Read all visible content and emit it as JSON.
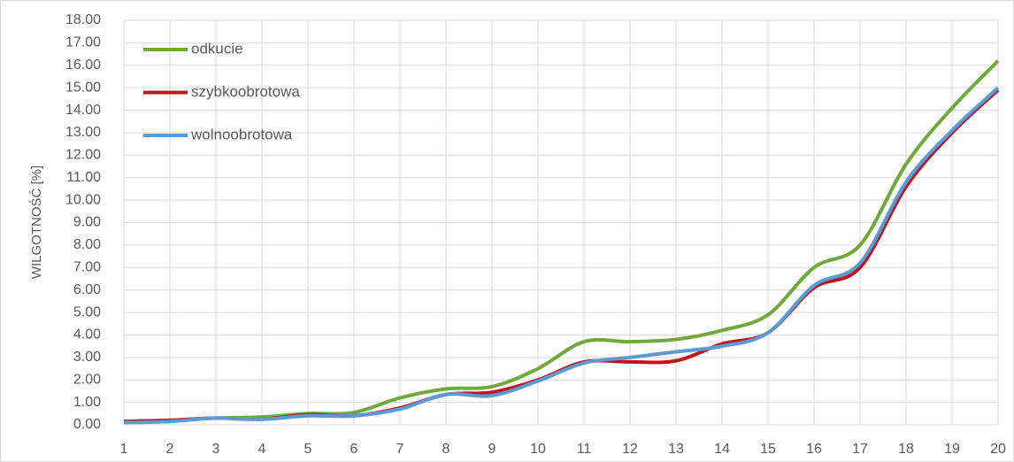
{
  "chart_data": {
    "type": "line",
    "y_label": "WILGOTNOŚĆ [%]",
    "x": [
      1,
      2,
      3,
      4,
      5,
      6,
      7,
      8,
      9,
      10,
      11,
      12,
      13,
      14,
      15,
      16,
      17,
      18,
      19,
      20
    ],
    "xlim": [
      1,
      20
    ],
    "xticks": [
      1,
      2,
      3,
      4,
      5,
      6,
      7,
      8,
      9,
      10,
      11,
      12,
      13,
      14,
      15,
      16,
      17,
      18,
      19,
      20
    ],
    "ylim": [
      0,
      18
    ],
    "yticks": [
      {
        "value": 0,
        "label": "0.00"
      },
      {
        "value": 1,
        "label": "1.00"
      },
      {
        "value": 2,
        "label": "2.00"
      },
      {
        "value": 3,
        "label": "3.00"
      },
      {
        "value": 4,
        "label": "4.00"
      },
      {
        "value": 5,
        "label": "5.00"
      },
      {
        "value": 6,
        "label": "6.00"
      },
      {
        "value": 7,
        "label": "7.00"
      },
      {
        "value": 8,
        "label": "8.00"
      },
      {
        "value": 9,
        "label": "9.00"
      },
      {
        "value": 10,
        "label": "10.00"
      },
      {
        "value": 11,
        "label": "11.00"
      },
      {
        "value": 12,
        "label": "12.00"
      },
      {
        "value": 13,
        "label": "13.00"
      },
      {
        "value": 14,
        "label": "14.00"
      },
      {
        "value": 15,
        "label": "15.00"
      },
      {
        "value": 16,
        "label": "16.00"
      },
      {
        "value": 17,
        "label": "17.00"
      },
      {
        "value": 18,
        "label": "18.00"
      }
    ],
    "grid": true,
    "smooth": true,
    "legend": "upper left",
    "series": [
      {
        "name": "odkucie",
        "color": "#70a83b",
        "values": [
          0.15,
          0.2,
          0.3,
          0.35,
          0.5,
          0.55,
          1.2,
          1.6,
          1.7,
          2.5,
          3.7,
          3.7,
          3.8,
          4.2,
          4.9,
          7.0,
          8.0,
          11.6,
          14.1,
          16.2
        ]
      },
      {
        "name": "szybkoobrotowa",
        "color": "#c0151c",
        "values": [
          0.15,
          0.2,
          0.3,
          0.25,
          0.45,
          0.4,
          0.75,
          1.35,
          1.45,
          2.0,
          2.8,
          2.8,
          2.85,
          3.6,
          4.1,
          6.1,
          7.0,
          10.6,
          13.0,
          14.9
        ]
      },
      {
        "name": "wolnoobrotowa",
        "color": "#5b9bd5",
        "values": [
          0.1,
          0.15,
          0.3,
          0.25,
          0.4,
          0.4,
          0.7,
          1.35,
          1.3,
          1.95,
          2.75,
          3.0,
          3.25,
          3.5,
          4.1,
          6.2,
          7.2,
          10.8,
          13.1,
          15.0
        ]
      }
    ]
  }
}
